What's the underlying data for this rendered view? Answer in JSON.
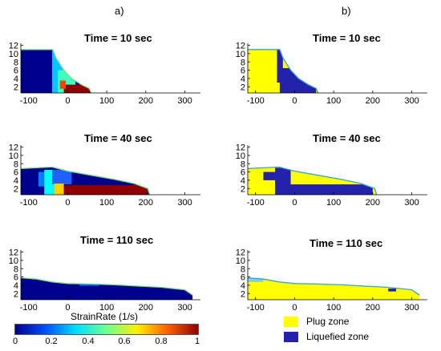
{
  "column_labels": [
    "a)",
    "b)"
  ],
  "colorbar": {
    "title": "StrainRate (1/s)",
    "ticks": [
      "0",
      "0.2",
      "0.4",
      "0.6",
      "0.8",
      "1"
    ],
    "colors": [
      "#00008f",
      "#0050ff",
      "#00dfff",
      "#6fff8f",
      "#ffef00",
      "#ff6000",
      "#8f0000"
    ]
  },
  "legend": [
    {
      "label": "Plug zone",
      "color": "#ffff00"
    },
    {
      "label": "Liquefied zone",
      "color": "#2222aa"
    }
  ],
  "chart_data": [
    {
      "type": "heatmap",
      "column": "a",
      "title": "Time = 10 sec",
      "xticks": [
        -100,
        0,
        100,
        200,
        300
      ],
      "yticks": [
        2,
        4,
        6,
        8,
        10,
        12
      ],
      "xlim": [
        -120,
        340
      ],
      "ylim": [
        0.5,
        12.5
      ],
      "colorbar_label": "StrainRate (1/s)",
      "clim": [
        0,
        1
      ],
      "surface": [
        [
          -120,
          11
        ],
        [
          -38,
          11
        ],
        [
          -30,
          9
        ],
        [
          -10,
          6
        ],
        [
          10,
          4
        ],
        [
          35,
          2.5
        ],
        [
          55,
          1.6
        ],
        [
          60,
          0.5
        ]
      ]
    },
    {
      "type": "heatmap",
      "column": "a",
      "title": "Time = 40 sec",
      "xticks": [
        -100,
        0,
        100,
        200,
        300
      ],
      "yticks": [
        2,
        4,
        6,
        8,
        10,
        12
      ],
      "xlim": [
        -120,
        340
      ],
      "ylim": [
        0.5,
        12.5
      ],
      "colorbar_label": "StrainRate (1/s)",
      "clim": [
        0,
        1
      ],
      "surface": [
        [
          -120,
          6.8
        ],
        [
          -80,
          7
        ],
        [
          -40,
          7.2
        ],
        [
          0,
          6.2
        ],
        [
          60,
          5.2
        ],
        [
          120,
          4.2
        ],
        [
          170,
          3.2
        ],
        [
          205,
          2
        ],
        [
          210,
          0.5
        ]
      ]
    },
    {
      "type": "heatmap",
      "column": "a",
      "title": "Time = 110 sec",
      "xticks": [
        -100,
        0,
        100,
        200,
        300
      ],
      "yticks": [
        2,
        4,
        6,
        8,
        10,
        12
      ],
      "xlim": [
        -120,
        340
      ],
      "ylim": [
        0.5,
        12.5
      ],
      "colorbar_label": "StrainRate (1/s)",
      "clim": [
        0,
        1
      ],
      "surface": [
        [
          -120,
          5.8
        ],
        [
          -80,
          5.5
        ],
        [
          -40,
          4.8
        ],
        [
          0,
          4.4
        ],
        [
          60,
          4.3
        ],
        [
          120,
          4.1
        ],
        [
          180,
          3.8
        ],
        [
          240,
          3.5
        ],
        [
          300,
          2.9
        ],
        [
          320,
          1.6
        ]
      ]
    },
    {
      "type": "heatmap",
      "column": "b",
      "title": "Time = 10 sec",
      "xticks": [
        -100,
        0,
        100,
        200,
        300
      ],
      "yticks": [
        2,
        4,
        6,
        8,
        10,
        12
      ],
      "xlim": [
        -120,
        340
      ],
      "ylim": [
        0.5,
        12.5
      ],
      "categories": [
        "Plug zone",
        "Liquefied zone"
      ],
      "surface": [
        [
          -120,
          11
        ],
        [
          -38,
          11
        ],
        [
          -30,
          9
        ],
        [
          -10,
          6
        ],
        [
          10,
          4
        ],
        [
          35,
          2.5
        ],
        [
          55,
          1.6
        ],
        [
          60,
          0.5
        ]
      ]
    },
    {
      "type": "heatmap",
      "column": "b",
      "title": "Time = 40 sec",
      "xticks": [
        -100,
        0,
        100,
        200,
        300
      ],
      "yticks": [
        2,
        4,
        6,
        8,
        10,
        12
      ],
      "xlim": [
        -120,
        340
      ],
      "ylim": [
        0.5,
        12.5
      ],
      "categories": [
        "Plug zone",
        "Liquefied zone"
      ],
      "surface": [
        [
          -120,
          6.8
        ],
        [
          -80,
          7
        ],
        [
          -40,
          7.2
        ],
        [
          0,
          6.2
        ],
        [
          60,
          5.2
        ],
        [
          120,
          4.2
        ],
        [
          170,
          3.2
        ],
        [
          205,
          2
        ],
        [
          210,
          0.5
        ]
      ]
    },
    {
      "type": "heatmap",
      "column": "b",
      "title": "Time = 110 sec",
      "xticks": [
        -100,
        0,
        100,
        200,
        300
      ],
      "yticks": [
        2,
        4,
        6,
        8,
        10,
        12
      ],
      "xlim": [
        -120,
        340
      ],
      "ylim": [
        0.5,
        12.5
      ],
      "categories": [
        "Plug zone",
        "Liquefied zone"
      ],
      "surface": [
        [
          -120,
          5.8
        ],
        [
          -80,
          5.5
        ],
        [
          -40,
          4.8
        ],
        [
          0,
          4.4
        ],
        [
          60,
          4.3
        ],
        [
          120,
          4.1
        ],
        [
          180,
          3.8
        ],
        [
          240,
          3.5
        ],
        [
          300,
          2.9
        ],
        [
          320,
          1.6
        ]
      ]
    }
  ]
}
